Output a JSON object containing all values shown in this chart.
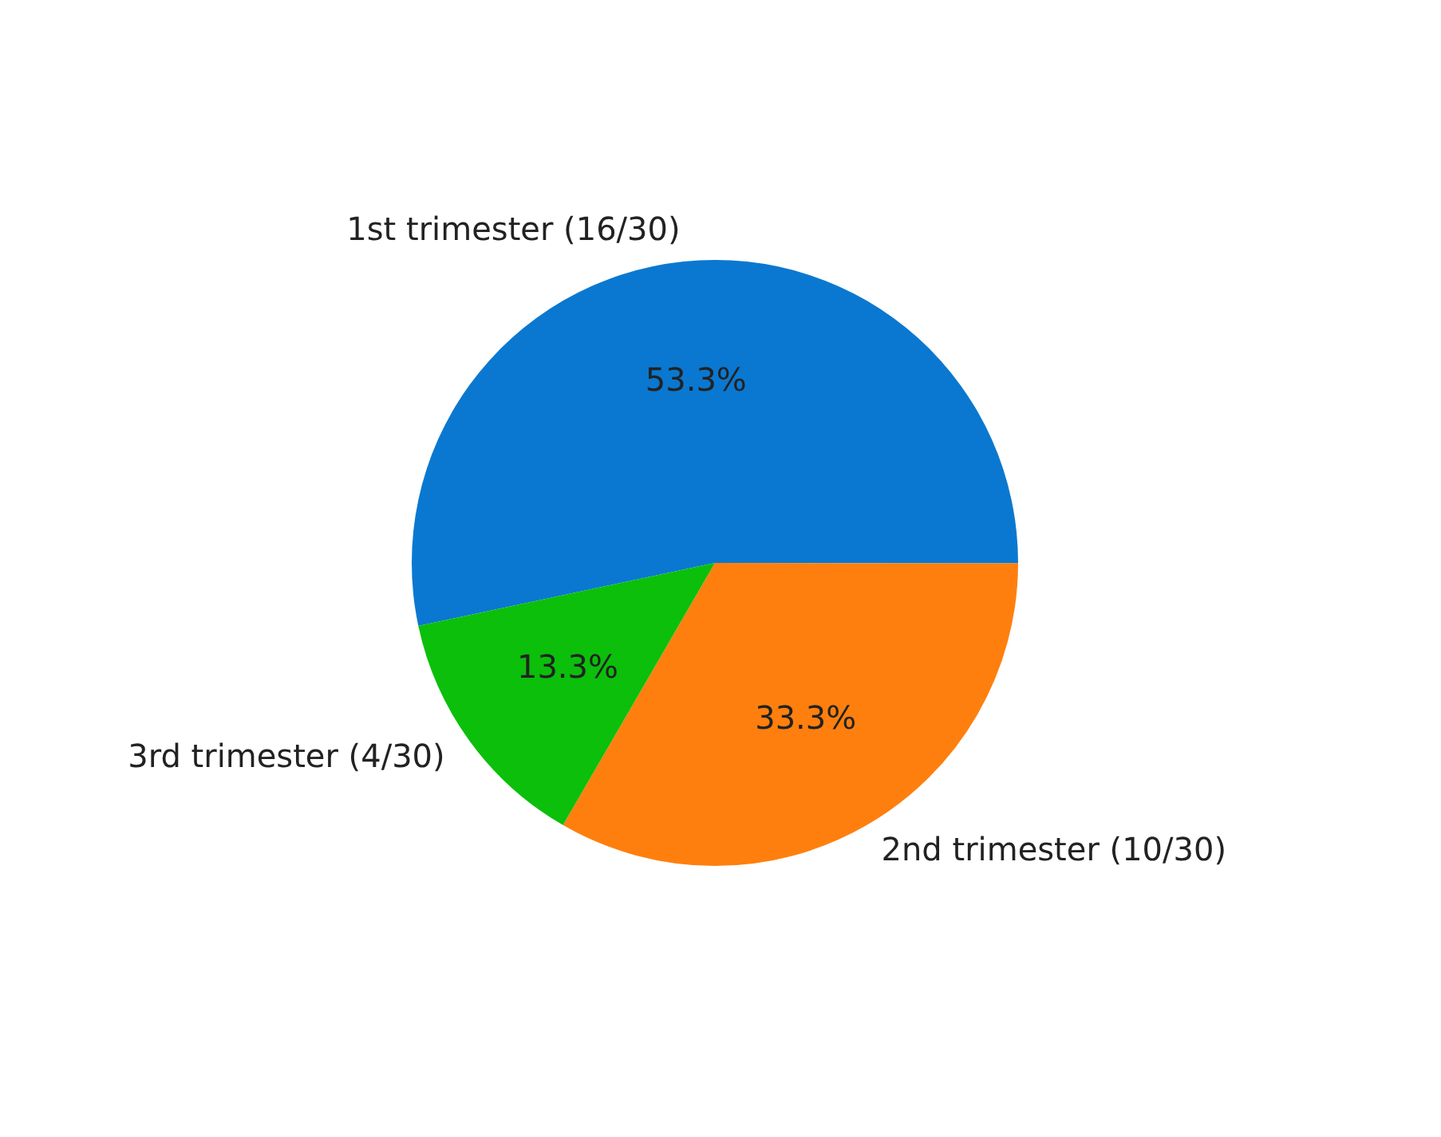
{
  "chart_data": {
    "type": "pie",
    "categories": [
      "1st trimester (16/30)",
      "2nd trimester (10/30)",
      "3rd trimester (4/30)"
    ],
    "values": [
      53.3,
      33.3,
      13.3
    ],
    "colors": [
      "#0a78d0",
      "#ff7f0e",
      "#0bbf0b"
    ],
    "value_labels": [
      "53.3%",
      "33.3%",
      "13.3%"
    ],
    "legend": false
  }
}
